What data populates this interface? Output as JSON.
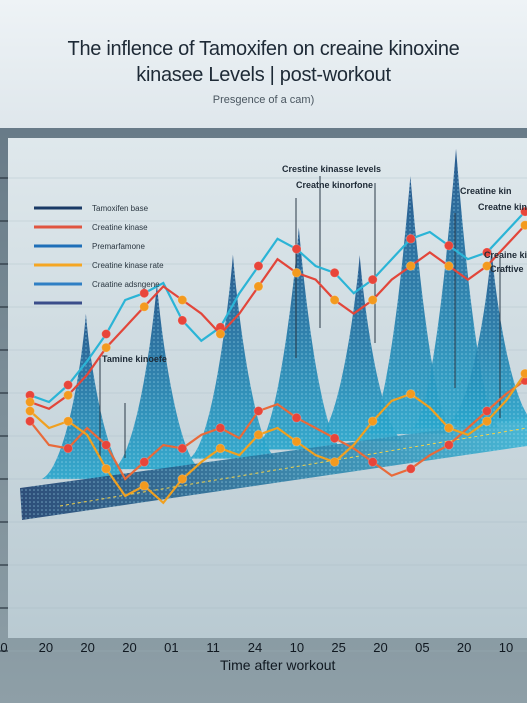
{
  "title_line1": "The inflence of Tamoxifen on creaine kinoxine",
  "title_line2": "kinasee Levels | post-workout",
  "subtitle": "Presgence of a cam)",
  "chart_data": {
    "type": "line",
    "xlabel": "Time after workout",
    "x_ticks": [
      "0",
      "20",
      "20",
      "20",
      "01",
      "11",
      "24",
      "10",
      "25",
      "20",
      "05",
      "20",
      "10"
    ],
    "legend": [
      "Tamoxifen base",
      "Creatine kinase",
      "Premarfamone",
      "Creatine kinase rate",
      "Craatine adsngene",
      ""
    ],
    "legend_colors": [
      "#1a3a66",
      "#e05540",
      "#1e6fb8",
      "#f5a623",
      "#2f7fc4",
      "#3a4d8a"
    ],
    "annotations": [
      "Tamine kinoefe",
      "Crestine kinasse levels",
      "Creatne kinorfone",
      "Creatine kin",
      "Creatne kin",
      "Creaine kin",
      "Craftive"
    ],
    "series": [
      {
        "values": [
          52,
          45,
          44,
          50,
          45,
          35,
          40,
          45,
          44,
          48,
          50,
          47,
          55,
          57,
          53,
          50,
          47,
          44,
          40,
          36,
          38,
          42,
          45,
          50,
          55,
          60,
          64
        ]
      },
      {
        "values": [
          55,
          50,
          52,
          48,
          38,
          30,
          33,
          28,
          35,
          40,
          44,
          42,
          48,
          50,
          46,
          42,
          40,
          45,
          52,
          58,
          60,
          56,
          50,
          48,
          52,
          58,
          66
        ]
      },
      {
        "values": [
          42,
          40,
          45,
          52,
          60,
          70,
          72,
          75,
          64,
          58,
          62,
          72,
          80,
          88,
          85,
          80,
          78,
          72,
          76,
          82,
          88,
          90,
          86,
          82,
          84,
          90,
          96
        ]
      },
      {
        "values": [
          40,
          38,
          42,
          48,
          56,
          62,
          68,
          74,
          70,
          66,
          60,
          66,
          74,
          82,
          78,
          76,
          70,
          66,
          70,
          76,
          80,
          84,
          80,
          76,
          80,
          86,
          92
        ]
      }
    ],
    "ridge_peaks": [
      {
        "x": 0.13,
        "h": 0.55
      },
      {
        "x": 0.27,
        "h": 0.62
      },
      {
        "x": 0.42,
        "h": 0.68
      },
      {
        "x": 0.55,
        "h": 0.74
      },
      {
        "x": 0.67,
        "h": 0.62
      },
      {
        "x": 0.77,
        "h": 0.86
      },
      {
        "x": 0.86,
        "h": 0.93
      },
      {
        "x": 0.93,
        "h": 0.58
      }
    ]
  }
}
